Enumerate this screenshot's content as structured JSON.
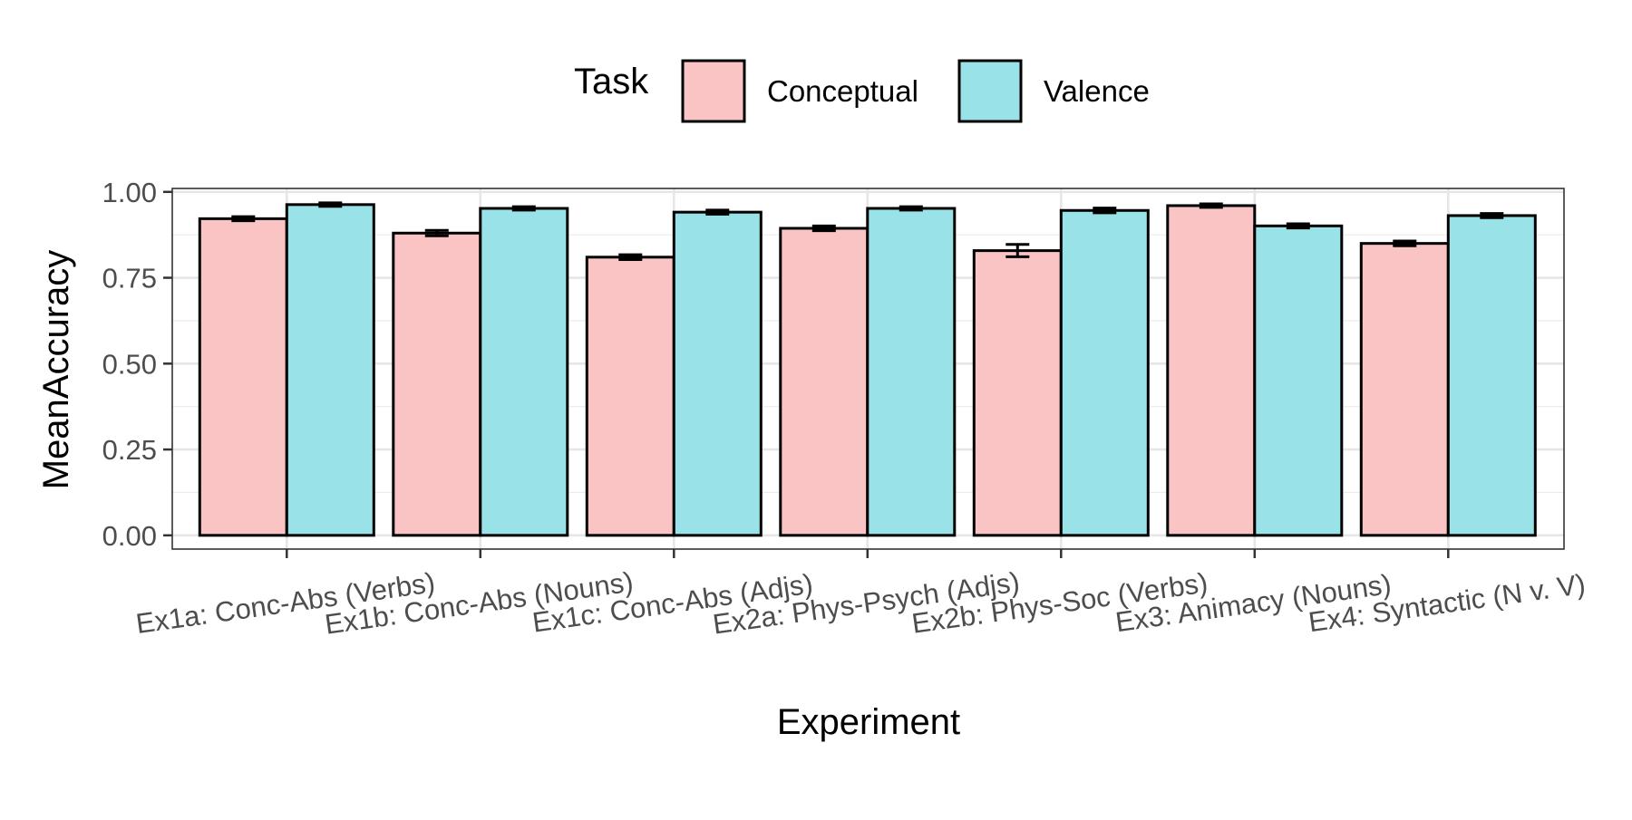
{
  "chart_data": {
    "type": "bar",
    "title": "",
    "xlabel": "Experiment",
    "ylabel": "MeanAccuracy",
    "ylim": [
      -0.04,
      1.01
    ],
    "yticks": [
      0.0,
      0.25,
      0.5,
      0.75,
      1.0
    ],
    "ytick_labels": [
      "0.00",
      "0.25",
      "0.50",
      "0.75",
      "1.00"
    ],
    "grid": true,
    "legend": {
      "title": "Task",
      "position": "top"
    },
    "categories": [
      "Ex1a: Conc-Abs (Verbs)",
      "Ex1b: Conc-Abs (Nouns)",
      "Ex1c: Conc-Abs (Adjs)",
      "Ex2a: Phys-Psych (Adjs)",
      "Ex2b: Phys-Soc (Verbs)",
      "Ex3: Animacy (Nouns)",
      "Ex4: Syntactic (N v. V)"
    ],
    "series": [
      {
        "name": "Conceptual",
        "color": "#f9c4c3",
        "values": [
          0.922,
          0.88,
          0.81,
          0.894,
          0.829,
          0.96,
          0.85
        ],
        "errors": [
          0.006,
          0.008,
          0.007,
          0.007,
          0.018,
          0.005,
          0.007
        ]
      },
      {
        "name": "Valence",
        "color": "#99e3e8",
        "values": [
          0.963,
          0.952,
          0.941,
          0.952,
          0.946,
          0.901,
          0.931
        ],
        "errors": [
          0.005,
          0.005,
          0.006,
          0.005,
          0.007,
          0.006,
          0.006
        ]
      }
    ]
  }
}
